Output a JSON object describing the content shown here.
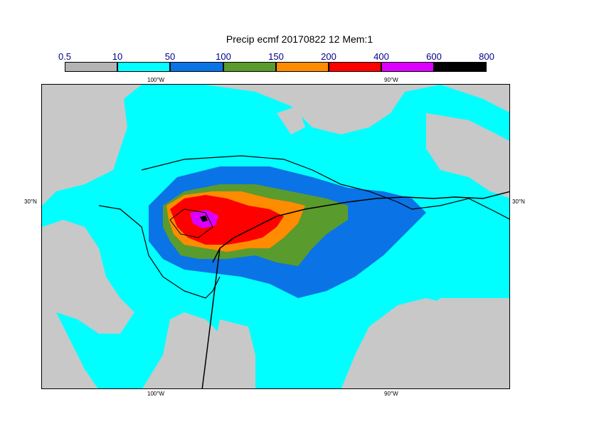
{
  "title": "Precip ecmf 20170822 12 Mem:1",
  "colorbar": {
    "ticks": [
      "0.5",
      "10",
      "50",
      "100",
      "150",
      "200",
      "400",
      "600",
      "800"
    ],
    "colors": [
      "#b4b4b4",
      "#00ffff",
      "#0a73e6",
      "#5a9b2d",
      "#ff8c00",
      "#ff0000",
      "#dc00ff",
      "#000000"
    ]
  },
  "axes": {
    "lon_top": [
      "100°W",
      "90°W"
    ],
    "lon_bottom": [
      "100°W",
      "90°W"
    ],
    "lat_left": [
      "30°N"
    ],
    "lat_right": [
      "30°N"
    ]
  }
}
